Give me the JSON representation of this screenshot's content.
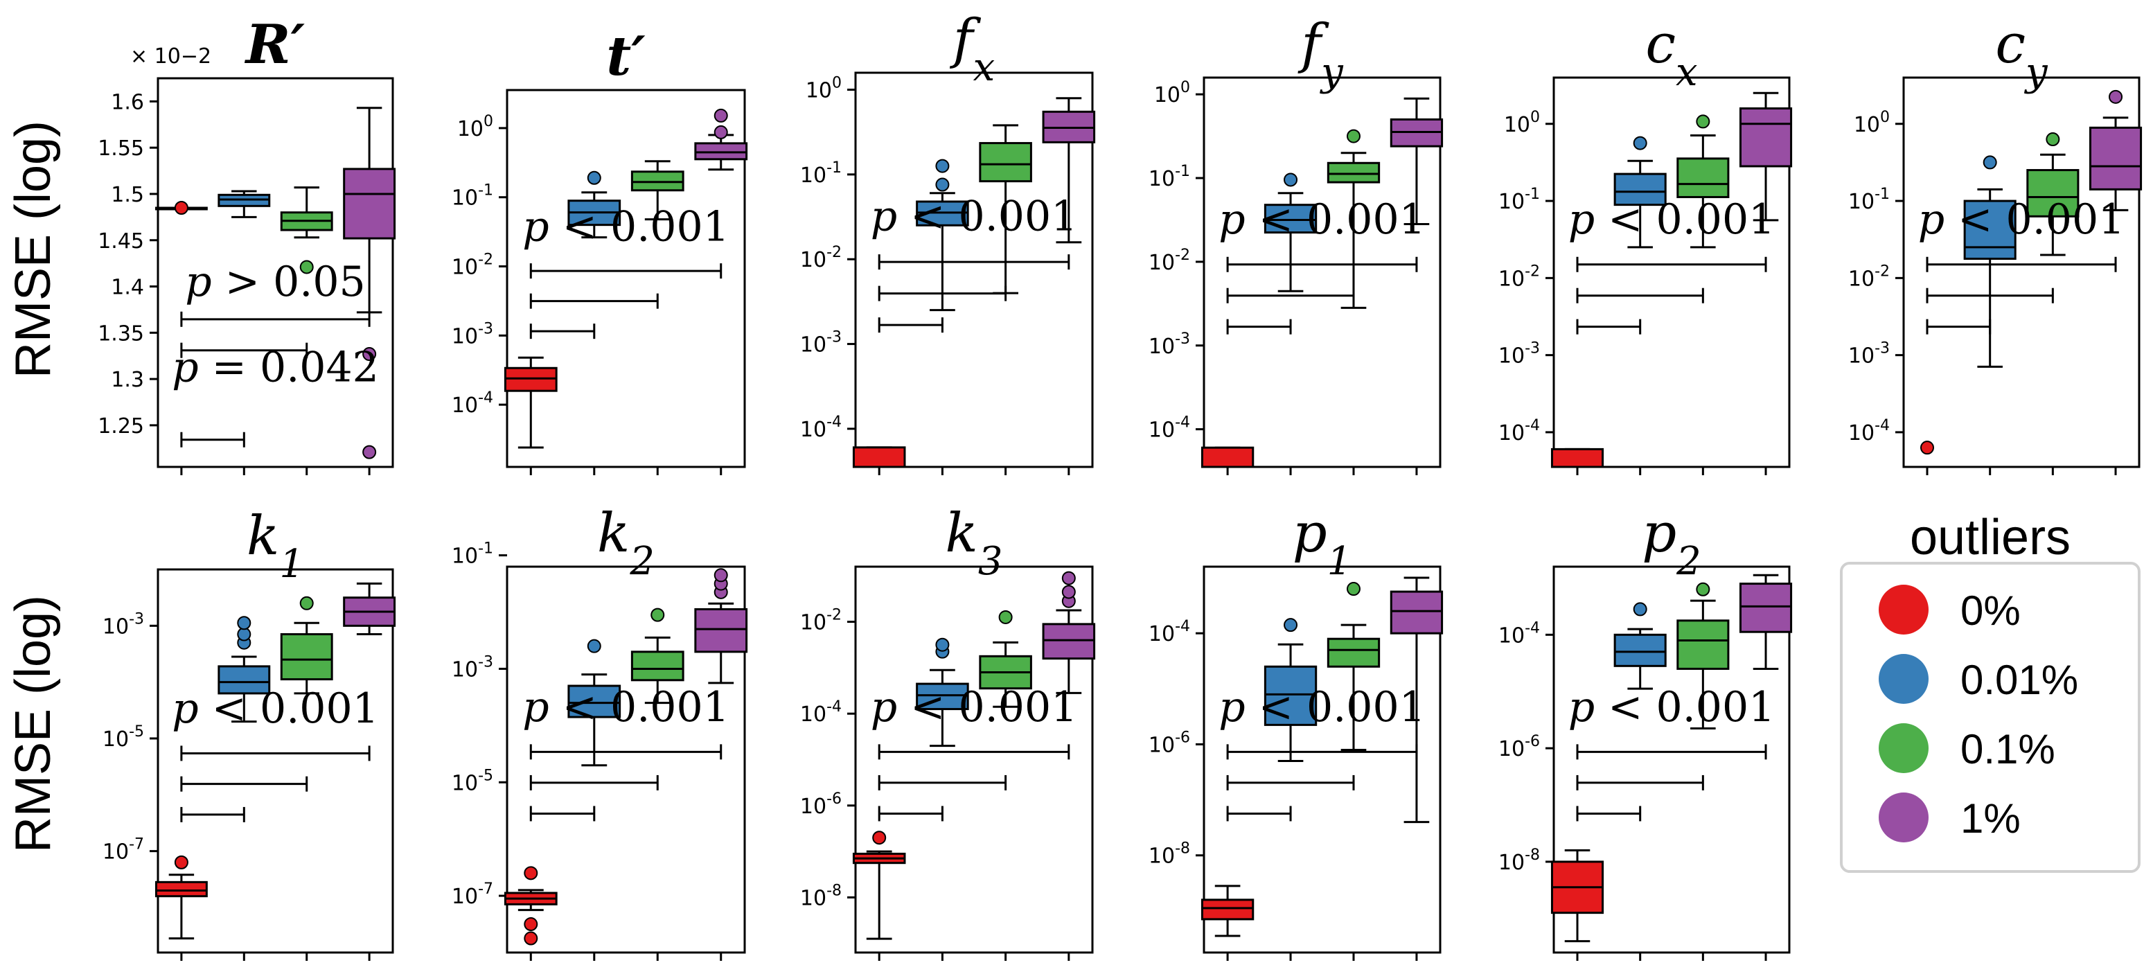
{
  "ylabel": "RMSE (log)",
  "colors": [
    "#e41a1c",
    "#377eb8",
    "#4daf4a",
    "#984ea3"
  ],
  "legend": {
    "title": "outliers",
    "entries": [
      {
        "label": "0%",
        "color": "#e41a1c"
      },
      {
        "label": "0.01%",
        "color": "#377eb8"
      },
      {
        "label": "0.1%",
        "color": "#4daf4a"
      },
      {
        "label": "1%",
        "color": "#984ea3"
      }
    ]
  },
  "chart_data": [
    {
      "type": "box",
      "title": "R′",
      "ylabel": "RMSE (log)",
      "scale": "linear",
      "ylim": [
        1.205,
        1.625
      ],
      "offset_label": "× 10−2",
      "yticks": [
        1.25,
        1.3,
        1.35,
        1.4,
        1.45,
        1.5,
        1.55,
        1.6
      ],
      "ytick_labels": [
        "1.25",
        "1.3",
        "1.35",
        "1.4",
        "1.45",
        "1.5",
        "1.55",
        "1.6"
      ],
      "boxes": [
        {
          "q1": 1.485,
          "median": 1.485,
          "q3": 1.485,
          "wlo": 1.485,
          "whi": 1.485,
          "outliers": [
            1.485
          ]
        },
        {
          "q1": 1.487,
          "median": 1.494,
          "q3": 1.499,
          "wlo": 1.475,
          "whi": 1.503,
          "outliers": []
        },
        {
          "q1": 1.461,
          "median": 1.471,
          "q3": 1.48,
          "wlo": 1.453,
          "whi": 1.507,
          "outliers": [
            1.421
          ]
        },
        {
          "q1": 1.452,
          "median": 1.5,
          "q3": 1.527,
          "wlo": 1.372,
          "whi": 1.593,
          "outliers": [
            1.327,
            1.221
          ]
        }
      ],
      "annotations": [
        "p > 0.05",
        "p = 0.042"
      ],
      "brackets": [
        [
          0,
          3
        ],
        [
          0,
          2
        ],
        [
          0,
          1
        ]
      ]
    },
    {
      "type": "box",
      "title": "t′",
      "ylabel": "",
      "scale": "log",
      "ylim": [
        -4.9,
        0.55
      ],
      "yticks": [
        0,
        -1,
        -2,
        -3,
        -4
      ],
      "ytick_labels": [
        [
          "10",
          "0"
        ],
        [
          "10",
          "-1"
        ],
        [
          "10",
          "-2"
        ],
        [
          "10",
          "-3"
        ],
        [
          "10",
          "-4"
        ]
      ],
      "boxes": [
        {
          "q1": -3.8,
          "median": -3.62,
          "q3": -3.47,
          "wlo": -4.62,
          "whi": -3.32,
          "outliers": []
        },
        {
          "q1": -1.4,
          "median": -1.22,
          "q3": -1.05,
          "wlo": -1.58,
          "whi": -0.93,
          "outliers": [
            -0.72
          ]
        },
        {
          "q1": -0.9,
          "median": -0.78,
          "q3": -0.63,
          "wlo": -1.32,
          "whi": -0.48,
          "outliers": []
        },
        {
          "q1": -0.45,
          "median": -0.35,
          "q3": -0.22,
          "wlo": -0.6,
          "whi": -0.1,
          "outliers": [
            0.18,
            -0.06
          ]
        }
      ],
      "annotations": [
        "p < 0.001"
      ],
      "brackets": [
        [
          0,
          3
        ],
        [
          0,
          2
        ],
        [
          0,
          1
        ]
      ]
    },
    {
      "type": "box",
      "title": "fx",
      "ylabel": "",
      "scale": "log",
      "ylim": [
        -4.45,
        0.2
      ],
      "yticks": [
        0,
        -1,
        -2,
        -3,
        -4
      ],
      "ytick_labels": [
        [
          "10",
          "0"
        ],
        [
          "10",
          "-1"
        ],
        [
          "10",
          "-2"
        ],
        [
          "10",
          "-3"
        ],
        [
          "10",
          "-4"
        ]
      ],
      "boxes": [
        {
          "q1": -4.8,
          "median": -4.6,
          "q3": -4.22,
          "wlo": -4.8,
          "whi": -4.22,
          "outliers": []
        },
        {
          "q1": -1.6,
          "median": -1.45,
          "q3": -1.32,
          "wlo": -2.6,
          "whi": -1.22,
          "outliers": [
            -1.12,
            -0.9
          ]
        },
        {
          "q1": -1.08,
          "median": -0.88,
          "q3": -0.63,
          "wlo": -2.4,
          "whi": -0.42,
          "outliers": []
        },
        {
          "q1": -0.62,
          "median": -0.45,
          "q3": -0.26,
          "wlo": -1.8,
          "whi": -0.1,
          "outliers": []
        }
      ],
      "annotations": [
        "p < 0.001"
      ],
      "brackets": [
        [
          0,
          3
        ],
        [
          0,
          2
        ],
        [
          0,
          1
        ]
      ]
    },
    {
      "type": "box",
      "title": "fy",
      "ylabel": "",
      "scale": "log",
      "ylim": [
        -4.45,
        0.2
      ],
      "yticks": [
        0,
        -1,
        -2,
        -3,
        -4
      ],
      "ytick_labels": [
        [
          "10",
          "0"
        ],
        [
          "10",
          "-1"
        ],
        [
          "10",
          "-2"
        ],
        [
          "10",
          "-3"
        ],
        [
          "10",
          "-4"
        ]
      ],
      "boxes": [
        {
          "q1": -4.8,
          "median": -4.6,
          "q3": -4.22,
          "wlo": -4.8,
          "whi": -4.22,
          "outliers": []
        },
        {
          "q1": -1.65,
          "median": -1.5,
          "q3": -1.32,
          "wlo": -2.35,
          "whi": -1.18,
          "outliers": [
            -1.02
          ]
        },
        {
          "q1": -1.05,
          "median": -0.95,
          "q3": -0.82,
          "wlo": -2.55,
          "whi": -0.7,
          "outliers": [
            -0.5
          ]
        },
        {
          "q1": -0.62,
          "median": -0.45,
          "q3": -0.3,
          "wlo": -1.55,
          "whi": -0.05,
          "outliers": []
        }
      ],
      "annotations": [
        "p < 0.001"
      ],
      "brackets": [
        [
          0,
          3
        ],
        [
          0,
          2
        ],
        [
          0,
          1
        ]
      ]
    },
    {
      "type": "box",
      "title": "cx",
      "ylabel": "",
      "scale": "log",
      "ylim": [
        -4.45,
        0.6
      ],
      "yticks": [
        0,
        -1,
        -2,
        -3,
        -4
      ],
      "ytick_labels": [
        [
          "10",
          "0"
        ],
        [
          "10",
          "-1"
        ],
        [
          "10",
          "-2"
        ],
        [
          "10",
          "-3"
        ],
        [
          "10",
          "-4"
        ]
      ],
      "boxes": [
        {
          "q1": -4.8,
          "median": -4.6,
          "q3": -4.22,
          "wlo": -4.8,
          "whi": -4.22,
          "outliers": []
        },
        {
          "q1": -1.05,
          "median": -0.88,
          "q3": -0.65,
          "wlo": -1.6,
          "whi": -0.48,
          "outliers": [
            -0.25
          ]
        },
        {
          "q1": -0.95,
          "median": -0.78,
          "q3": -0.45,
          "wlo": -1.6,
          "whi": -0.15,
          "outliers": [
            0.03
          ]
        },
        {
          "q1": -0.55,
          "median": 0.0,
          "q3": 0.2,
          "wlo": -1.25,
          "whi": 0.4,
          "outliers": []
        }
      ],
      "annotations": [
        "p < 0.001"
      ],
      "brackets": [
        [
          0,
          3
        ],
        [
          0,
          2
        ],
        [
          0,
          1
        ]
      ]
    },
    {
      "type": "box",
      "title": "cy",
      "ylabel": "",
      "scale": "log",
      "ylim": [
        -4.45,
        0.6
      ],
      "yticks": [
        0,
        -1,
        -2,
        -3,
        -4
      ],
      "ytick_labels": [
        [
          "10",
          "0"
        ],
        [
          "10",
          "-1"
        ],
        [
          "10",
          "-2"
        ],
        [
          "10",
          "-3"
        ],
        [
          "10",
          "-4"
        ]
      ],
      "boxes": [
        {
          "q1": null,
          "median": null,
          "q3": null,
          "wlo": null,
          "whi": null,
          "outliers": [
            -4.2
          ]
        },
        {
          "q1": -1.75,
          "median": -1.6,
          "q3": -1.0,
          "wlo": -3.15,
          "whi": -0.85,
          "outliers": [
            -0.5
          ]
        },
        {
          "q1": -1.2,
          "median": -0.95,
          "q3": -0.6,
          "wlo": -1.7,
          "whi": -0.4,
          "outliers": [
            -0.2
          ]
        },
        {
          "q1": -0.85,
          "median": -0.55,
          "q3": -0.05,
          "wlo": -1.12,
          "whi": 0.08,
          "outliers": [
            0.35
          ]
        }
      ],
      "annotations": [
        "p < 0.001"
      ],
      "brackets": [
        [
          0,
          3
        ],
        [
          0,
          2
        ],
        [
          0,
          1
        ]
      ]
    },
    {
      "type": "box",
      "title": "k1",
      "ylabel": "RMSE (log)",
      "scale": "log",
      "ylim": [
        -8.8,
        -2.0
      ],
      "yticks": [
        -3,
        -5,
        -7
      ],
      "ytick_labels": [
        [
          "10",
          "-3"
        ],
        [
          "10",
          "-5"
        ],
        [
          "10",
          "-7"
        ]
      ],
      "boxes": [
        {
          "q1": -7.8,
          "median": -7.7,
          "q3": -7.55,
          "wlo": -8.55,
          "whi": -7.42,
          "outliers": [
            -7.2
          ]
        },
        {
          "q1": -4.2,
          "median": -4.0,
          "q3": -3.72,
          "wlo": -4.7,
          "whi": -3.55,
          "outliers": [
            -3.3,
            -3.15,
            -2.95
          ]
        },
        {
          "q1": -3.95,
          "median": -3.6,
          "q3": -3.15,
          "wlo": -4.2,
          "whi": -2.95,
          "outliers": [
            -2.6
          ]
        },
        {
          "q1": -3.0,
          "median": -2.75,
          "q3": -2.5,
          "wlo": -3.15,
          "whi": -2.25,
          "outliers": []
        }
      ],
      "annotations": [
        "p < 0.001"
      ],
      "brackets": [
        [
          0,
          3
        ],
        [
          0,
          2
        ],
        [
          0,
          1
        ]
      ]
    },
    {
      "type": "box",
      "title": "k2",
      "ylabel": "",
      "scale": "log",
      "ylim": [
        -8.0,
        -1.2
      ],
      "yticks": [
        -1,
        -3,
        -5,
        -7
      ],
      "ytick_labels": [
        [
          "10",
          "-1"
        ],
        [
          "10",
          "-3"
        ],
        [
          "10",
          "-5"
        ],
        [
          "10",
          "-7"
        ]
      ],
      "boxes": [
        {
          "q1": -7.15,
          "median": -7.05,
          "q3": -6.95,
          "wlo": -7.25,
          "whi": -6.9,
          "outliers": [
            -6.6,
            -7.5,
            -7.75
          ]
        },
        {
          "q1": -3.85,
          "median": -3.6,
          "q3": -3.3,
          "wlo": -4.7,
          "whi": -3.1,
          "outliers": [
            -2.6
          ]
        },
        {
          "q1": -3.2,
          "median": -3.0,
          "q3": -2.7,
          "wlo": -3.6,
          "whi": -2.45,
          "outliers": [
            -2.05
          ]
        },
        {
          "q1": -2.7,
          "median": -2.3,
          "q3": -1.95,
          "wlo": -3.25,
          "whi": -1.85,
          "outliers": [
            -1.65,
            -1.5,
            -1.35
          ]
        }
      ],
      "annotations": [
        "p < 0.001"
      ],
      "brackets": [
        [
          0,
          3
        ],
        [
          0,
          2
        ],
        [
          0,
          1
        ]
      ]
    },
    {
      "type": "box",
      "title": "k3",
      "ylabel": "",
      "scale": "log",
      "ylim": [
        -9.2,
        -0.8
      ],
      "yticks": [
        -2,
        -4,
        -6,
        -8
      ],
      "ytick_labels": [
        [
          "10",
          "-2"
        ],
        [
          "10",
          "-4"
        ],
        [
          "10",
          "-6"
        ],
        [
          "10",
          "-8"
        ]
      ],
      "boxes": [
        {
          "q1": -7.25,
          "median": -7.15,
          "q3": -7.05,
          "wlo": -8.9,
          "whi": -7.0,
          "outliers": [
            -6.7
          ]
        },
        {
          "q1": -3.9,
          "median": -3.6,
          "q3": -3.35,
          "wlo": -4.7,
          "whi": -3.05,
          "outliers": [
            -2.65,
            -2.5
          ]
        },
        {
          "q1": -3.45,
          "median": -3.1,
          "q3": -2.75,
          "wlo": -3.85,
          "whi": -2.45,
          "outliers": [
            -1.9
          ]
        },
        {
          "q1": -2.8,
          "median": -2.4,
          "q3": -2.05,
          "wlo": -3.55,
          "whi": -1.75,
          "outliers": [
            -1.55,
            -1.35,
            -1.05
          ]
        }
      ],
      "annotations": [
        "p < 0.001"
      ],
      "brackets": [
        [
          0,
          3
        ],
        [
          0,
          2
        ],
        [
          0,
          1
        ]
      ]
    },
    {
      "type": "box",
      "title": "p1",
      "ylabel": "",
      "scale": "log",
      "ylim": [
        -9.75,
        -2.8
      ],
      "yticks": [
        -4,
        -6,
        -8
      ],
      "ytick_labels": [
        [
          "10",
          "-4"
        ],
        [
          "10",
          "-6"
        ],
        [
          "10",
          "-8"
        ]
      ],
      "boxes": [
        {
          "q1": -9.15,
          "median": -8.95,
          "q3": -8.8,
          "wlo": -9.45,
          "whi": -8.55,
          "outliers": []
        },
        {
          "q1": -5.65,
          "median": -5.1,
          "q3": -4.6,
          "wlo": -6.3,
          "whi": -4.2,
          "outliers": [
            -3.85
          ]
        },
        {
          "q1": -4.6,
          "median": -4.3,
          "q3": -4.1,
          "wlo": -6.1,
          "whi": -3.85,
          "outliers": [
            -3.2
          ]
        },
        {
          "q1": -4.0,
          "median": -3.6,
          "q3": -3.25,
          "wlo": -7.4,
          "whi": -3.0,
          "outliers": []
        }
      ],
      "annotations": [
        "p < 0.001"
      ],
      "brackets": [
        [
          0,
          3
        ],
        [
          0,
          2
        ],
        [
          0,
          1
        ]
      ]
    },
    {
      "type": "box",
      "title": "p2",
      "ylabel": "",
      "scale": "log",
      "ylim": [
        -9.6,
        -2.8
      ],
      "yticks": [
        -4,
        -6,
        -8
      ],
      "ytick_labels": [
        [
          "10",
          "-4"
        ],
        [
          "10",
          "-6"
        ],
        [
          "10",
          "-8"
        ]
      ],
      "boxes": [
        {
          "q1": -8.9,
          "median": -8.45,
          "q3": -8.0,
          "wlo": -9.4,
          "whi": -7.8,
          "outliers": []
        },
        {
          "q1": -4.55,
          "median": -4.3,
          "q3": -4.0,
          "wlo": -4.95,
          "whi": -3.9,
          "outliers": [
            -3.55
          ]
        },
        {
          "q1": -4.6,
          "median": -4.1,
          "q3": -3.75,
          "wlo": -5.65,
          "whi": -3.4,
          "outliers": [
            -3.2
          ]
        },
        {
          "q1": -3.95,
          "median": -3.5,
          "q3": -3.1,
          "wlo": -4.6,
          "whi": -2.95,
          "outliers": []
        }
      ],
      "annotations": [
        "p < 0.001"
      ],
      "brackets": [
        [
          0,
          3
        ],
        [
          0,
          2
        ],
        [
          0,
          1
        ]
      ]
    }
  ]
}
